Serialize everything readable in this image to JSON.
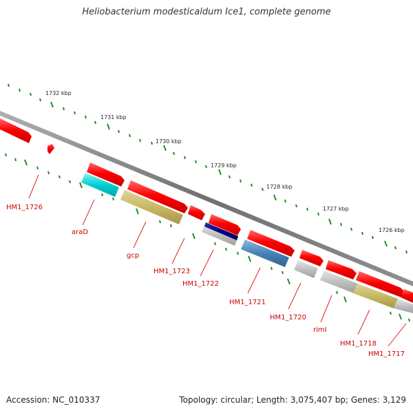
{
  "title": "Heliobacterium modesticaldum Ice1, complete genome",
  "footer": {
    "accession": "Accession: NC_010337",
    "summary": "Topology: circular; Length: 3,075,407 bp; Genes: 3,129"
  },
  "colors": {
    "tick": "#228b22",
    "label": "#cc0000",
    "backbone": "#808080",
    "red_gene": "#ff0000",
    "cyan_gene": "#00cccc",
    "khaki_gene": "#c8b864",
    "navy_gene": "#000080",
    "steel_gene": "#4682b4",
    "grey_gene": "#c0c0c0"
  },
  "scale_labels": [
    "1732 kbp",
    "1731 kbp",
    "1730 kbp",
    "1729 kbp",
    "1728 kbp",
    "1727 kbp",
    "1726 kbp"
  ],
  "gene_labels": [
    "HM1_1726",
    "araD",
    "gcp",
    "HM1_1723",
    "HM1_1722",
    "HM1_1721",
    "HM1_1720",
    "rimI",
    "HM1_1718",
    "HM1_1717"
  ]
}
